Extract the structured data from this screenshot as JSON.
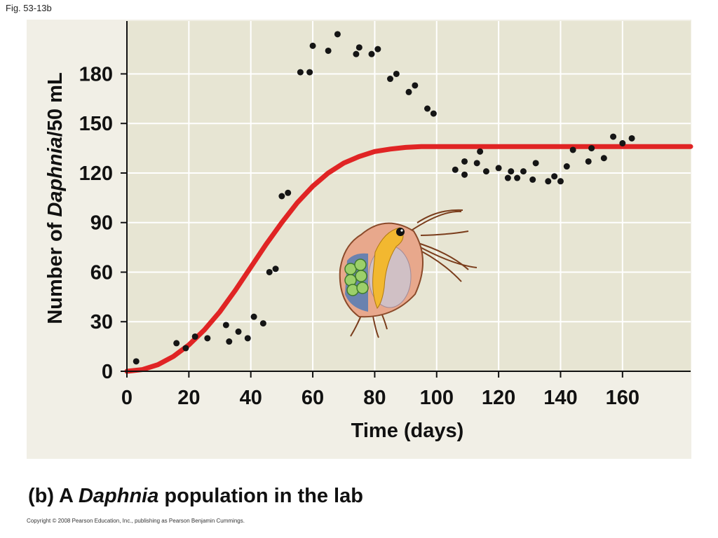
{
  "figure_label": "Fig. 53-13b",
  "caption": {
    "prefix": "(b) A ",
    "italic": "Daphnia",
    "suffix": " population in the lab"
  },
  "copyright": "Copyright © 2008 Pearson Education, Inc., publishing as Pearson Benjamin Cummings.",
  "colors": {
    "panel": "#f1efe6",
    "plot_bg": "#e7e5d3",
    "curve": "#e02424",
    "points": "#151515",
    "grid": "#ffffff"
  },
  "chart_data": {
    "type": "scatter",
    "xlabel": "Time (days)",
    "ylabel_parts": [
      "Number of ",
      "Daphnia",
      "/50 mL"
    ],
    "xlim": [
      0,
      182
    ],
    "ylim": [
      0,
      212
    ],
    "x_ticks": [
      0,
      20,
      40,
      60,
      80,
      100,
      120,
      140,
      160
    ],
    "y_ticks": [
      0,
      30,
      60,
      90,
      120,
      150,
      180
    ],
    "grid": true,
    "series": [
      {
        "kind": "scatter",
        "points": [
          [
            3,
            6
          ],
          [
            16,
            17
          ],
          [
            19,
            14
          ],
          [
            22,
            21
          ],
          [
            26,
            20
          ],
          [
            32,
            28
          ],
          [
            33,
            18
          ],
          [
            36,
            24
          ],
          [
            39,
            20
          ],
          [
            41,
            33
          ],
          [
            44,
            29
          ],
          [
            46,
            60
          ],
          [
            48,
            62
          ],
          [
            50,
            106
          ],
          [
            52,
            108
          ],
          [
            56,
            181
          ],
          [
            59,
            181
          ],
          [
            60,
            197
          ],
          [
            65,
            194
          ],
          [
            68,
            204
          ],
          [
            74,
            192
          ],
          [
            75,
            196
          ],
          [
            79,
            192
          ],
          [
            81,
            195
          ],
          [
            85,
            177
          ],
          [
            87,
            180
          ],
          [
            91,
            169
          ],
          [
            93,
            173
          ],
          [
            97,
            159
          ],
          [
            99,
            156
          ],
          [
            106,
            122
          ],
          [
            109,
            127
          ],
          [
            109,
            119
          ],
          [
            113,
            126
          ],
          [
            114,
            133
          ],
          [
            116,
            121
          ],
          [
            120,
            123
          ],
          [
            123,
            117
          ],
          [
            124,
            121
          ],
          [
            126,
            117
          ],
          [
            128,
            121
          ],
          [
            131,
            116
          ],
          [
            132,
            126
          ],
          [
            136,
            115
          ],
          [
            138,
            118
          ],
          [
            140,
            115
          ],
          [
            142,
            124
          ],
          [
            144,
            134
          ],
          [
            149,
            127
          ],
          [
            150,
            135
          ],
          [
            154,
            129
          ],
          [
            157,
            142
          ],
          [
            160,
            138
          ],
          [
            163,
            141
          ]
        ]
      },
      {
        "kind": "line",
        "points": [
          [
            0,
            0
          ],
          [
            5,
            1
          ],
          [
            10,
            4
          ],
          [
            15,
            9
          ],
          [
            20,
            16
          ],
          [
            25,
            25
          ],
          [
            30,
            36
          ],
          [
            35,
            49
          ],
          [
            40,
            63
          ],
          [
            45,
            77
          ],
          [
            50,
            90
          ],
          [
            55,
            102
          ],
          [
            60,
            112
          ],
          [
            65,
            120
          ],
          [
            70,
            126
          ],
          [
            75,
            130
          ],
          [
            80,
            133
          ],
          [
            85,
            134.5
          ],
          [
            90,
            135.5
          ],
          [
            95,
            136
          ],
          [
            100,
            136
          ],
          [
            120,
            136
          ],
          [
            140,
            136
          ],
          [
            160,
            136
          ],
          [
            182,
            136
          ]
        ]
      }
    ]
  }
}
